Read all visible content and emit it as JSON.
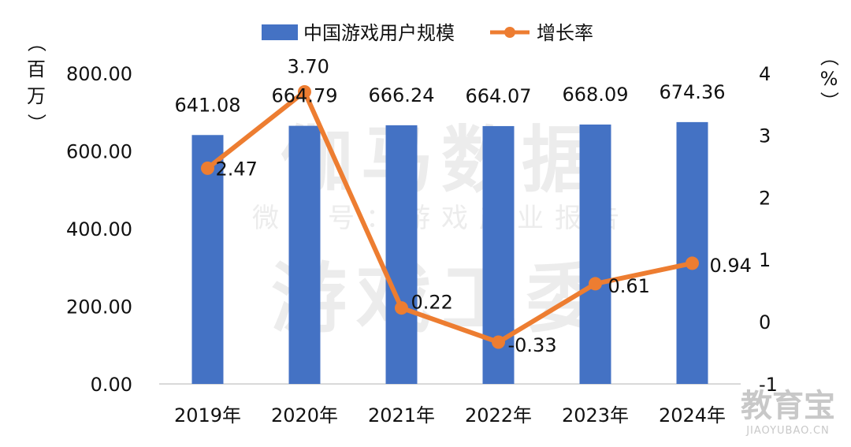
{
  "colors": {
    "bar": "#4472C4",
    "line": "#ED7D31",
    "axis": "#D9D9D9",
    "text": "#111111",
    "watermark": "#ECECEC",
    "logo": "#C8C8C8"
  },
  "watermark": {
    "line1": "伽马数据",
    "line2": "微信号：游戏产业报告",
    "line3": "游戏工委"
  },
  "logo": {
    "main": "教育宝",
    "sub": "JIAOYUBAO.CN"
  },
  "chart_data": {
    "type": "bar",
    "categories": [
      "2019年",
      "2020年",
      "2021年",
      "2022年",
      "2023年",
      "2024年"
    ],
    "series": [
      {
        "name": "中国游戏用户规模",
        "type": "bar",
        "axis": "left",
        "values": [
          641.08,
          664.79,
          666.24,
          664.07,
          668.09,
          674.36
        ],
        "labels": [
          "641.08",
          "664.79",
          "666.24",
          "664.07",
          "668.09",
          "674.36"
        ]
      },
      {
        "name": "增长率",
        "type": "line",
        "axis": "right",
        "values": [
          2.47,
          3.7,
          0.22,
          -0.33,
          0.61,
          0.94
        ],
        "labels": [
          "2.47",
          "3.70",
          "0.22",
          "-0.33",
          "0.61",
          "0.94"
        ]
      }
    ],
    "ylabel_left": "（百万）",
    "ylabel_right": "（%）",
    "ylim_left": [
      0,
      800
    ],
    "yticks_left": [
      "0.00",
      "200.00",
      "400.00",
      "600.00",
      "800.00"
    ],
    "ylim_right": [
      -1,
      4
    ],
    "yticks_right": [
      "-1",
      "0",
      "1",
      "2",
      "3",
      "4"
    ],
    "legend_position": "top-center",
    "grid": false
  }
}
